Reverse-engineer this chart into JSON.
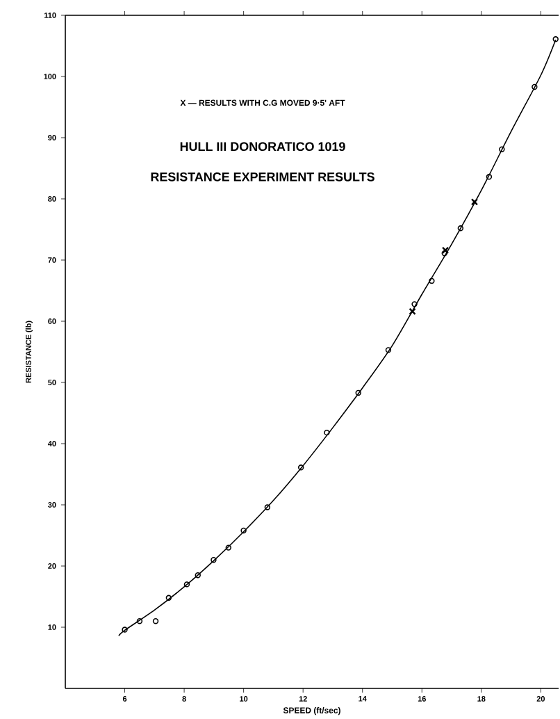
{
  "chart_data": {
    "type": "scatter",
    "title": "HULL III DONORATICO 1019",
    "subtitle": "RESISTANCE EXPERIMENT RESULTS",
    "xlabel": "SPEED (ft/sec)",
    "ylabel": "RESISTANCE (lb)",
    "annotations": [
      "X — RESULTS WITH C.G MOVED 9·5' AFT"
    ],
    "xlim": [
      4,
      20.6
    ],
    "ylim": [
      0,
      110
    ],
    "xticks": [
      6,
      8,
      10,
      12,
      14,
      16,
      18,
      20
    ],
    "yticks": [
      10,
      20,
      30,
      40,
      50,
      60,
      70,
      80,
      90,
      100,
      110
    ],
    "series": [
      {
        "type": "line",
        "color": "#000000",
        "marker": "none",
        "x": [
          5.8,
          6,
          7,
          8,
          9,
          10,
          11,
          12,
          13,
          14,
          15,
          16,
          17,
          18,
          19,
          20,
          20.5
        ],
        "values": [
          8.6,
          9.5,
          12.8,
          16.6,
          20.9,
          25.6,
          30.7,
          36.4,
          42.6,
          49.1,
          56.0,
          64.4,
          72.6,
          81.4,
          91.0,
          100.2,
          106
        ]
      },
      {
        "color": "#000000",
        "marker": "circle",
        "x": [
          6.0,
          6.5,
          7.04,
          7.48,
          8.09,
          8.46,
          8.99,
          9.49,
          10.0,
          10.8,
          11.93,
          12.8,
          13.86,
          14.87,
          15.75,
          16.33,
          16.76,
          17.3,
          18.26,
          18.69,
          19.79,
          20.5
        ],
        "values": [
          9.6,
          11.0,
          11.0,
          14.8,
          17.0,
          18.5,
          21.0,
          23.0,
          25.8,
          29.6,
          36.1,
          41.8,
          48.3,
          55.3,
          62.8,
          66.6,
          71.1,
          75.2,
          83.6,
          88.1,
          98.3,
          106.1
        ]
      },
      {
        "color": "#000000",
        "marker": "cross",
        "x": [
          15.68,
          16.79,
          17.77
        ],
        "values": [
          61.6,
          71.6,
          79.5
        ]
      }
    ]
  }
}
